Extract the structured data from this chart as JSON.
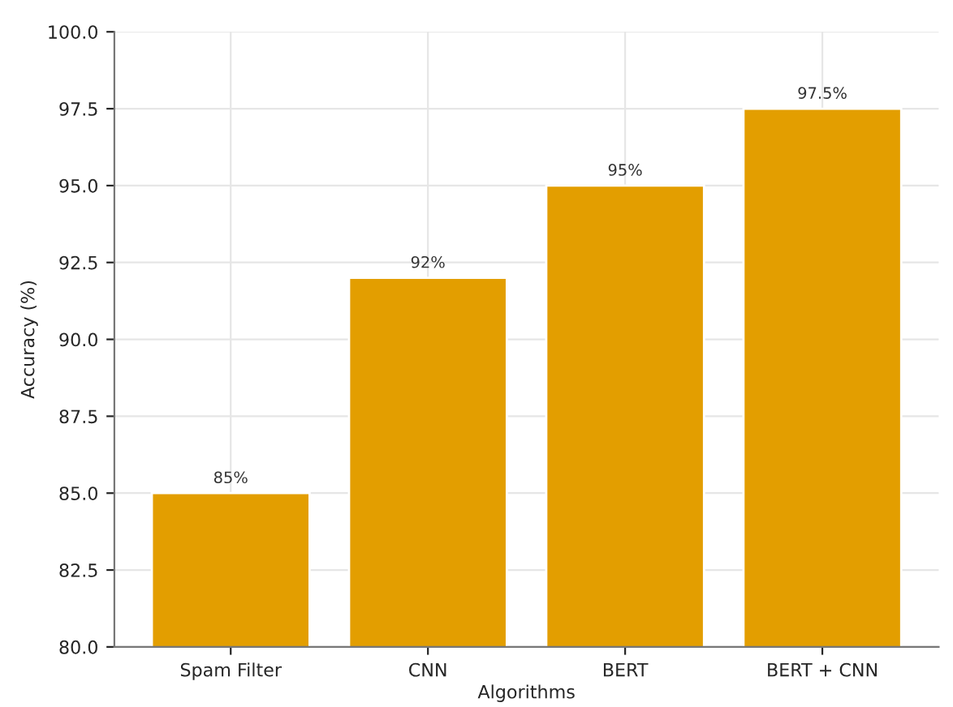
{
  "chart_data": {
    "type": "bar",
    "xlabel": "Algorithms",
    "ylabel": "Accuracy (%)",
    "categories": [
      "Spam Filter",
      "CNN",
      "BERT",
      "BERT + CNN"
    ],
    "values": [
      85,
      92,
      95,
      97.5
    ],
    "color": "#e39e00",
    "value_labels": [
      "85%",
      "92%",
      "95%",
      "97.5%"
    ],
    "ylim": [
      80,
      100
    ],
    "yticks": [
      {
        "value": 80,
        "label": "80.0"
      },
      {
        "value": 82.5,
        "label": "82.5"
      },
      {
        "value": 85,
        "label": "85.0"
      },
      {
        "value": 87.5,
        "label": "87.5"
      },
      {
        "value": 90,
        "label": "90.0"
      },
      {
        "value": 92.5,
        "label": "92.5"
      },
      {
        "value": 95,
        "label": "95.0"
      },
      {
        "value": 97.5,
        "label": "97.5"
      },
      {
        "value": 100,
        "label": "100.0"
      }
    ],
    "grid": true
  }
}
